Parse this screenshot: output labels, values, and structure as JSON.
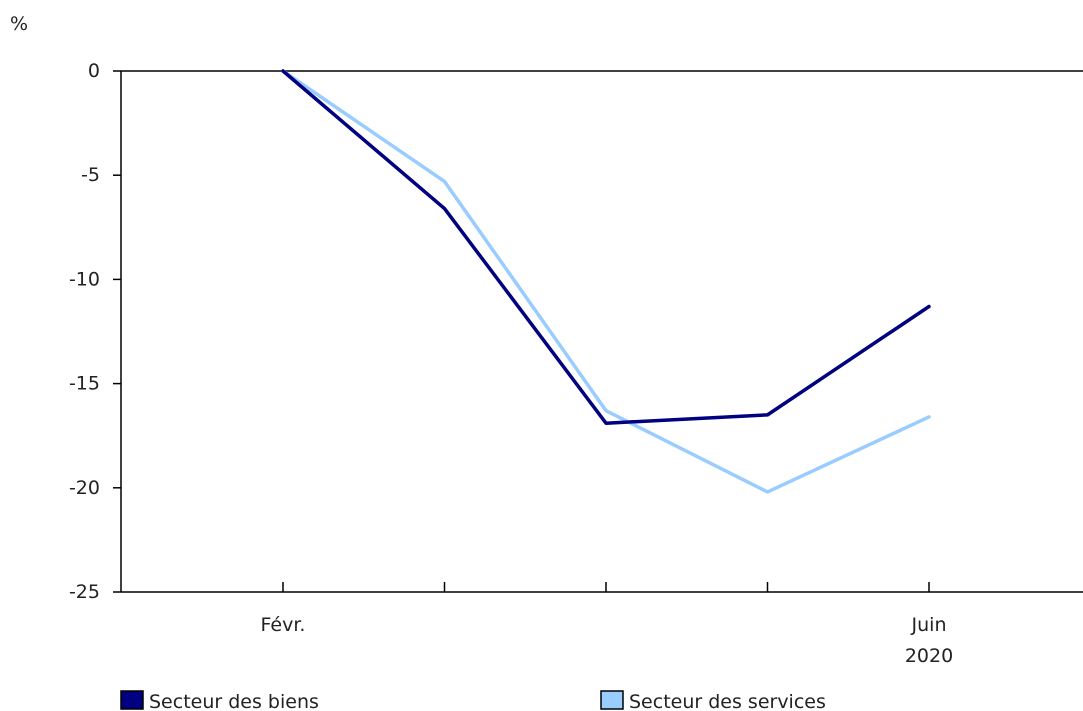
{
  "chart_data": {
    "type": "line",
    "ylabel": "%",
    "ylim": [
      -25,
      0
    ],
    "yticks": [
      0,
      -5,
      -10,
      -15,
      -20,
      -25
    ],
    "categories": [
      "Févr.",
      "",
      "",
      "",
      "Juin"
    ],
    "year_label": "2020",
    "grid": false,
    "legend_position": "bottom",
    "series": [
      {
        "name": "Secteur des biens",
        "color": "#000080",
        "values": [
          0,
          -6.6,
          -16.9,
          -16.5,
          -11.3
        ]
      },
      {
        "name": "Secteur des services",
        "color": "#99ccff",
        "values": [
          0,
          -5.3,
          -16.3,
          -20.2,
          -16.6
        ]
      }
    ]
  }
}
